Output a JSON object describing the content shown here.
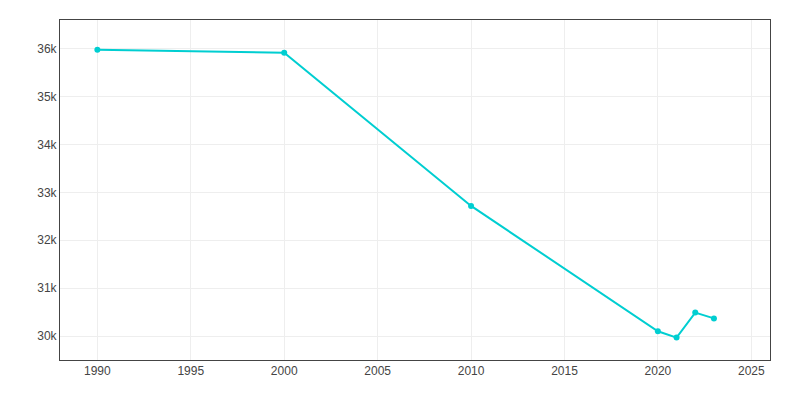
{
  "chart_data": {
    "type": "line",
    "x": [
      1990,
      2000,
      2010,
      2020,
      2021,
      2022,
      2023
    ],
    "values": [
      35978,
      35918,
      32718,
      30100,
      29968,
      30490,
      30369
    ],
    "color": "#00CED1",
    "marker": "circle",
    "xlim": [
      1988,
      2026
    ],
    "xticks": [
      1990,
      1995,
      2000,
      2005,
      2010,
      2015,
      2020,
      2025
    ],
    "ylim": [
      29500,
      36600
    ],
    "yticks": [
      {
        "value": 30000,
        "label": "30k"
      },
      {
        "value": 31000,
        "label": "31k"
      },
      {
        "value": 32000,
        "label": "32k"
      },
      {
        "value": 33000,
        "label": "33k"
      },
      {
        "value": 34000,
        "label": "34k"
      },
      {
        "value": 35000,
        "label": "35k"
      },
      {
        "value": 36000,
        "label": "36k"
      }
    ],
    "grid": true
  }
}
